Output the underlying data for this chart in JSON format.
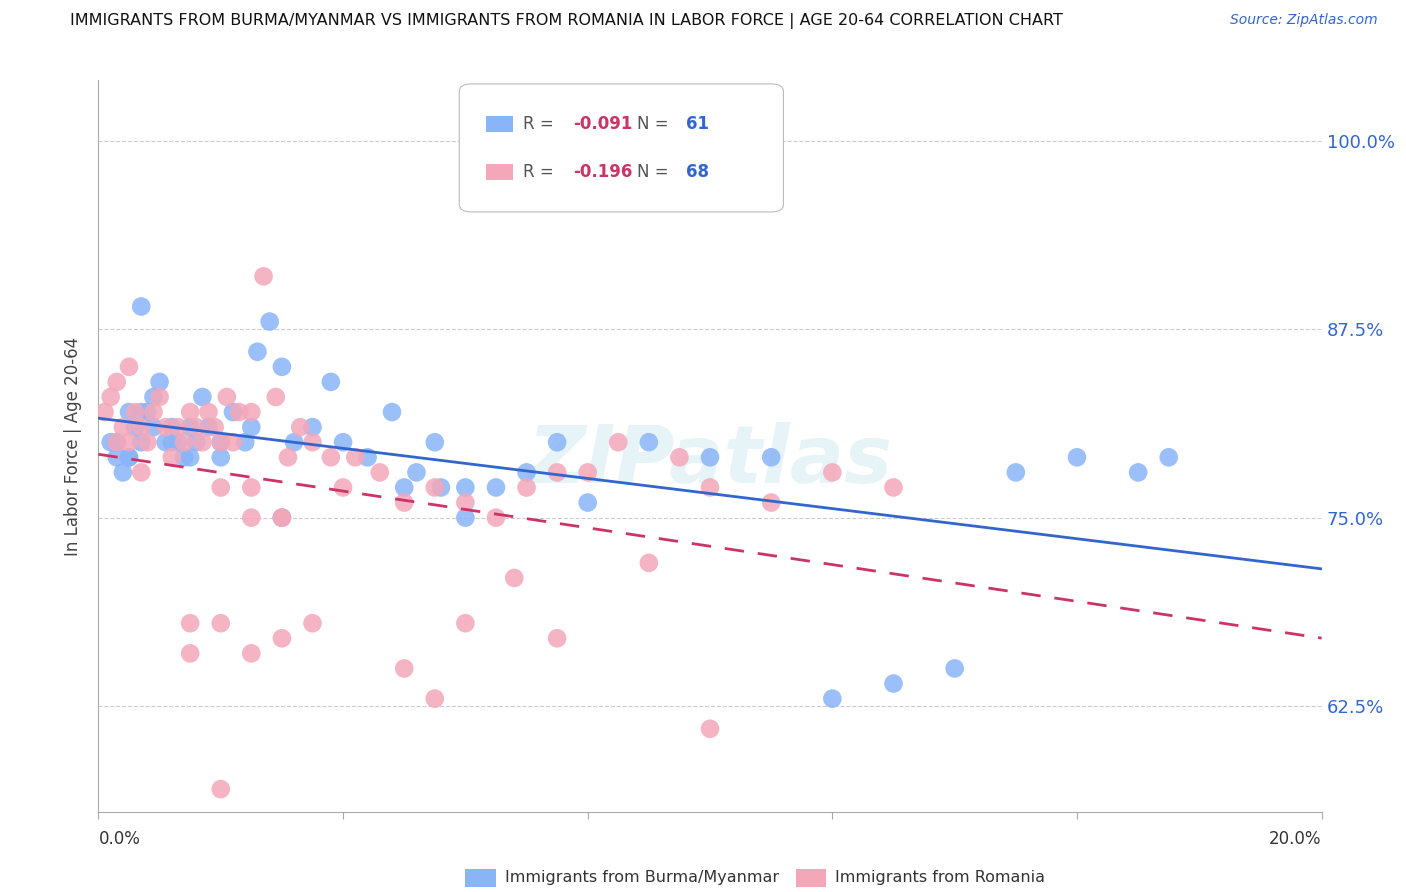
{
  "title": "IMMIGRANTS FROM BURMA/MYANMAR VS IMMIGRANTS FROM ROMANIA IN LABOR FORCE | AGE 20-64 CORRELATION CHART",
  "source": "Source: ZipAtlas.com",
  "ylabel": "In Labor Force | Age 20-64",
  "yticks": [
    0.625,
    0.75,
    0.875,
    1.0
  ],
  "ytick_labels": [
    "62.5%",
    "75.0%",
    "87.5%",
    "100.0%"
  ],
  "xlim": [
    0.0,
    0.2
  ],
  "ylim": [
    0.555,
    1.04
  ],
  "color_burma": "#8ab4f8",
  "color_romania": "#f4a7b9",
  "color_blue": "#3366cc",
  "color_pink": "#cc3366",
  "color_tick_blue": "#3366cc",
  "watermark": "ZIPatlas",
  "legend_r1": "-0.091",
  "legend_n1": "61",
  "legend_r2": "-0.196",
  "legend_n2": "68",
  "burma_x": [
    0.002,
    0.003,
    0.003,
    0.004,
    0.005,
    0.005,
    0.006,
    0.007,
    0.007,
    0.008,
    0.009,
    0.009,
    0.01,
    0.011,
    0.012,
    0.012,
    0.013,
    0.014,
    0.015,
    0.015,
    0.016,
    0.017,
    0.018,
    0.02,
    0.02,
    0.022,
    0.024,
    0.025,
    0.026,
    0.028,
    0.03,
    0.03,
    0.032,
    0.035,
    0.038,
    0.04,
    0.044,
    0.048,
    0.05,
    0.052,
    0.055,
    0.056,
    0.06,
    0.06,
    0.065,
    0.07,
    0.075,
    0.08,
    0.09,
    0.1,
    0.11,
    0.12,
    0.13,
    0.14,
    0.15,
    0.16,
    0.17,
    0.175,
    0.003,
    0.005,
    0.007
  ],
  "burma_y": [
    0.8,
    0.79,
    0.8,
    0.78,
    0.82,
    0.79,
    0.81,
    0.8,
    0.82,
    0.82,
    0.83,
    0.81,
    0.84,
    0.8,
    0.81,
    0.8,
    0.8,
    0.79,
    0.81,
    0.79,
    0.8,
    0.83,
    0.81,
    0.79,
    0.8,
    0.82,
    0.8,
    0.81,
    0.86,
    0.88,
    0.85,
    0.75,
    0.8,
    0.81,
    0.84,
    0.8,
    0.79,
    0.82,
    0.77,
    0.78,
    0.8,
    0.77,
    0.75,
    0.77,
    0.77,
    0.78,
    0.8,
    0.76,
    0.8,
    0.79,
    0.79,
    0.63,
    0.64,
    0.65,
    0.78,
    0.79,
    0.78,
    0.79,
    0.8,
    0.79,
    0.89
  ],
  "romania_x": [
    0.001,
    0.002,
    0.003,
    0.003,
    0.004,
    0.005,
    0.005,
    0.006,
    0.007,
    0.007,
    0.008,
    0.009,
    0.01,
    0.011,
    0.012,
    0.013,
    0.014,
    0.015,
    0.015,
    0.016,
    0.017,
    0.018,
    0.019,
    0.02,
    0.02,
    0.021,
    0.022,
    0.023,
    0.025,
    0.025,
    0.027,
    0.029,
    0.03,
    0.031,
    0.033,
    0.035,
    0.035,
    0.038,
    0.04,
    0.042,
    0.046,
    0.05,
    0.05,
    0.055,
    0.055,
    0.06,
    0.06,
    0.065,
    0.068,
    0.07,
    0.075,
    0.075,
    0.08,
    0.085,
    0.09,
    0.095,
    0.1,
    0.11,
    0.12,
    0.015,
    0.02,
    0.025,
    0.03,
    0.1,
    0.13,
    0.02,
    0.025,
    0.03
  ],
  "romania_y": [
    0.82,
    0.83,
    0.8,
    0.84,
    0.81,
    0.8,
    0.85,
    0.82,
    0.81,
    0.78,
    0.8,
    0.82,
    0.83,
    0.81,
    0.79,
    0.81,
    0.8,
    0.82,
    0.68,
    0.81,
    0.8,
    0.82,
    0.81,
    0.8,
    0.77,
    0.83,
    0.8,
    0.82,
    0.82,
    0.75,
    0.91,
    0.83,
    0.75,
    0.79,
    0.81,
    0.8,
    0.68,
    0.79,
    0.77,
    0.79,
    0.78,
    0.76,
    0.65,
    0.77,
    0.63,
    0.76,
    0.68,
    0.75,
    0.71,
    0.77,
    0.78,
    0.67,
    0.78,
    0.8,
    0.72,
    0.79,
    0.77,
    0.76,
    0.78,
    0.66,
    0.68,
    0.77,
    0.75,
    0.61,
    0.77,
    0.57,
    0.66,
    0.67
  ]
}
